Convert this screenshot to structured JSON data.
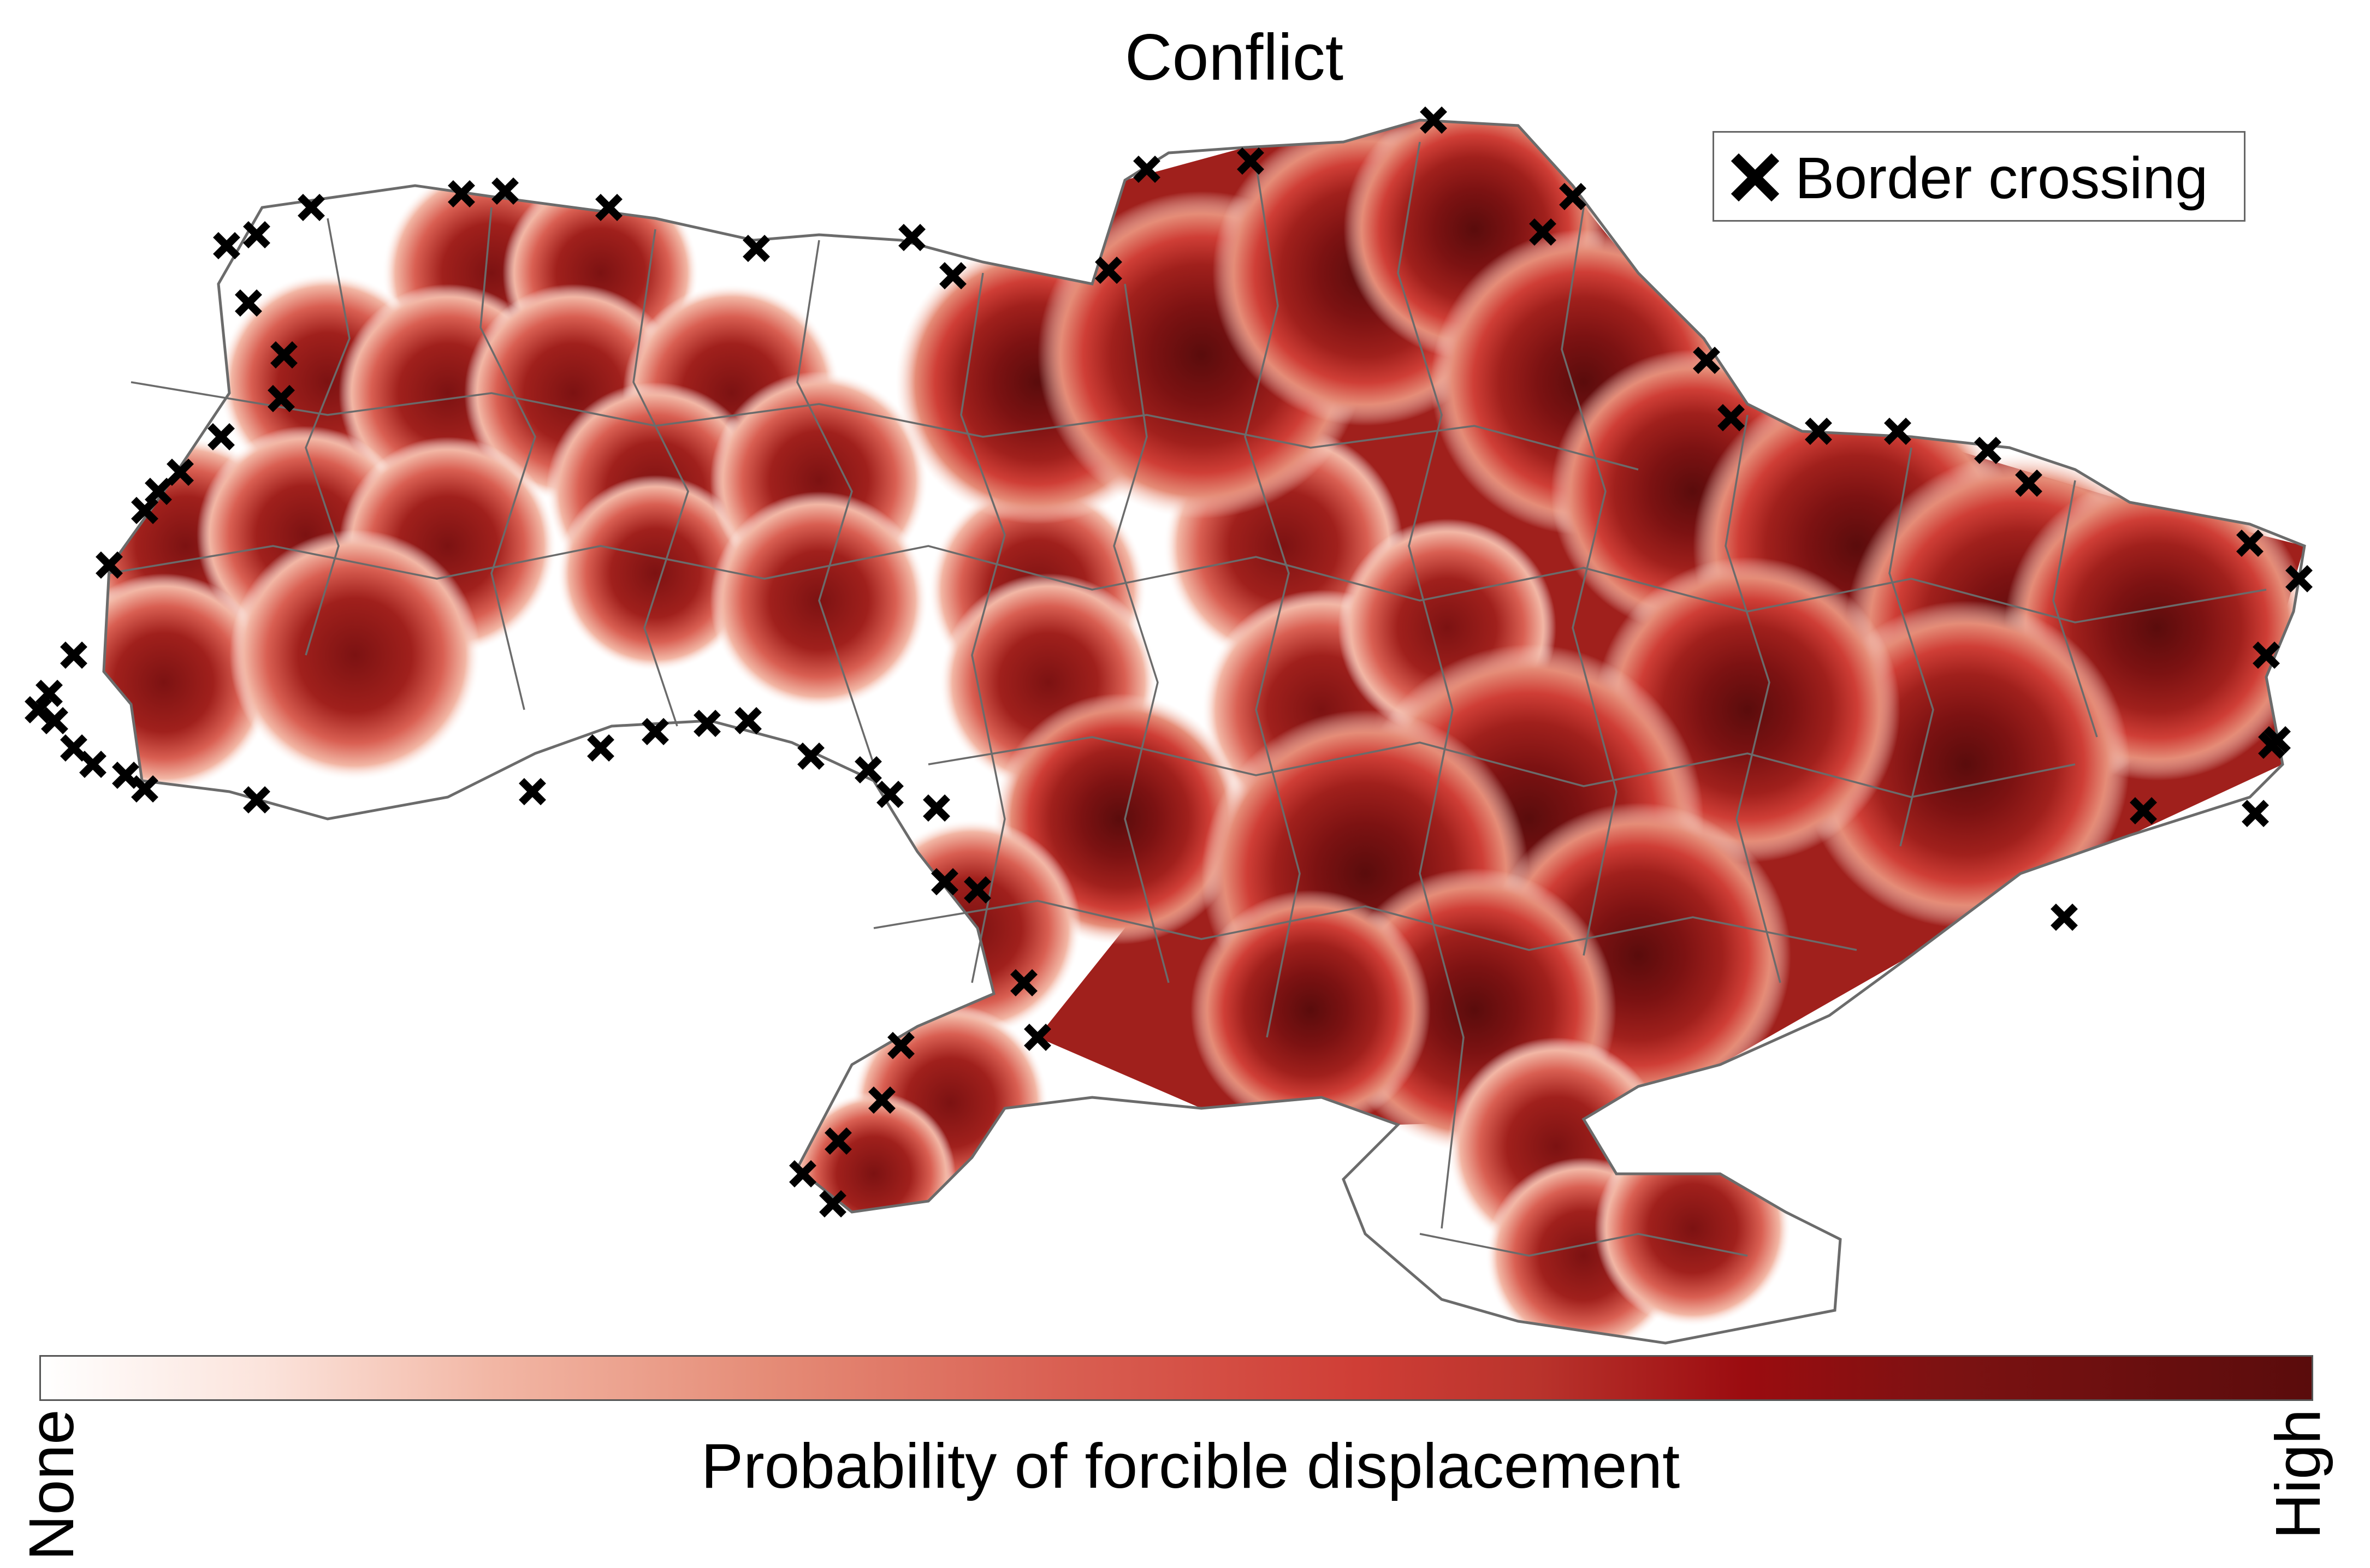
{
  "map": {
    "title": "Conflict",
    "legend": {
      "label": "Border crossing",
      "marker_icon": "x-cross-icon"
    },
    "colorbar": {
      "label": "Probability of forcible displacement",
      "low_label": "None",
      "high_label": "High",
      "colors": [
        "#ffffff",
        "#fbe3db",
        "#f2b6a4",
        "#e58c77",
        "#d95f52",
        "#cf3e36",
        "#9b0c10",
        "#5a0c0c"
      ]
    },
    "styling": {
      "boundary_color": "#6b6b6b",
      "fill_low": "#e07a6a",
      "fill_mid": "#a0201c",
      "fill_high": "#5a0c0c"
    },
    "high_displacement_regions": [
      "north-east",
      "east",
      "south-east",
      "south",
      "crimea"
    ],
    "low_displacement_regions": [
      "west",
      "central-west"
    ]
  }
}
